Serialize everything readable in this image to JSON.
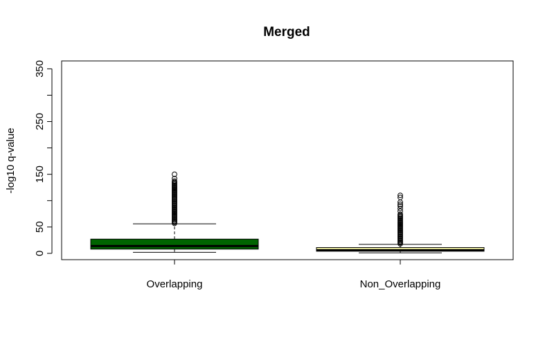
{
  "chart_data": {
    "type": "box",
    "title": "Merged",
    "xlabel": "",
    "ylabel": "-log10 q-value",
    "ylim": [
      -12,
      365
    ],
    "yticks": [
      0,
      50,
      150,
      250,
      350
    ],
    "yticks_minor": [
      100,
      200,
      300
    ],
    "grid": false,
    "legend": "none",
    "categories": [
      "Overlapping",
      "Non_Overlapping"
    ],
    "boxes": [
      {
        "name": "Overlapping",
        "fill": "#006400",
        "median_color": "#000000",
        "lower_whisker": 2,
        "q1": 8,
        "median": 14,
        "q3": 27,
        "upper_whisker": 56,
        "outliers": {
          "from": 57,
          "to": 137,
          "step": 2,
          "extra": [
            142,
            150
          ]
        }
      },
      {
        "name": "Non_Overlapping",
        "fill": "#FFFFAA",
        "median_color": "#000000",
        "lower_whisker": 1,
        "q1": 4,
        "median": 6,
        "q3": 11,
        "upper_whisker": 17,
        "outliers": {
          "from": 18,
          "to": 75,
          "step": 2,
          "extra": [
            80,
            85,
            90,
            93,
            97,
            106,
            110
          ]
        }
      }
    ]
  }
}
